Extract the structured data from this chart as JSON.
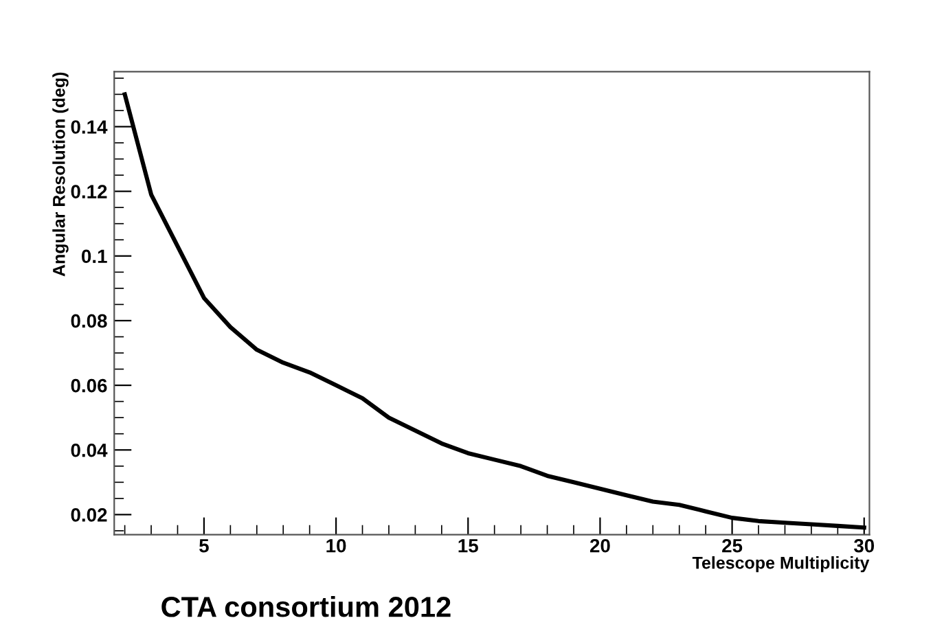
{
  "chart_data": {
    "type": "line",
    "xlabel": "Telescope Multiplicity",
    "ylabel": "Angular Resolution (deg)",
    "annotations": [
      "CTA consortium 2012"
    ],
    "x": [
      2,
      3,
      4,
      5,
      6,
      7,
      8,
      9,
      10,
      11,
      12,
      13,
      14,
      15,
      16,
      17,
      18,
      19,
      20,
      21,
      22,
      23,
      24,
      25,
      26,
      27,
      28,
      29,
      30
    ],
    "series": [
      {
        "color": "#000000",
        "values": [
          0.15,
          0.119,
          0.103,
          0.087,
          0.078,
          0.071,
          0.067,
          0.064,
          0.06,
          0.056,
          0.05,
          0.046,
          0.042,
          0.039,
          0.037,
          0.035,
          0.032,
          0.03,
          0.028,
          0.026,
          0.024,
          0.023,
          0.021,
          0.019,
          0.018,
          0.0175,
          0.017,
          0.0165,
          0.016
        ]
      }
    ],
    "xlim": [
      1.6,
      30.2
    ],
    "ylim": [
      0.0138,
      0.157
    ],
    "xticks": [
      5,
      10,
      15,
      20,
      25,
      30
    ],
    "yticks": [
      0.02,
      0.04,
      0.06,
      0.08,
      0.1,
      0.12,
      0.14
    ],
    "grid": false,
    "legend": false,
    "marker": "none",
    "line_style": "solid"
  }
}
